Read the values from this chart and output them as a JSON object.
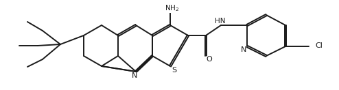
{
  "bg_color": "#ffffff",
  "line_color": "#1a1a1a",
  "line_width": 1.4,
  "font_size": 7.5,
  "figsize": [
    4.94,
    1.32
  ],
  "dpi": 100,
  "xlim": [
    0,
    10
  ],
  "ylim": [
    0,
    2.67
  ]
}
